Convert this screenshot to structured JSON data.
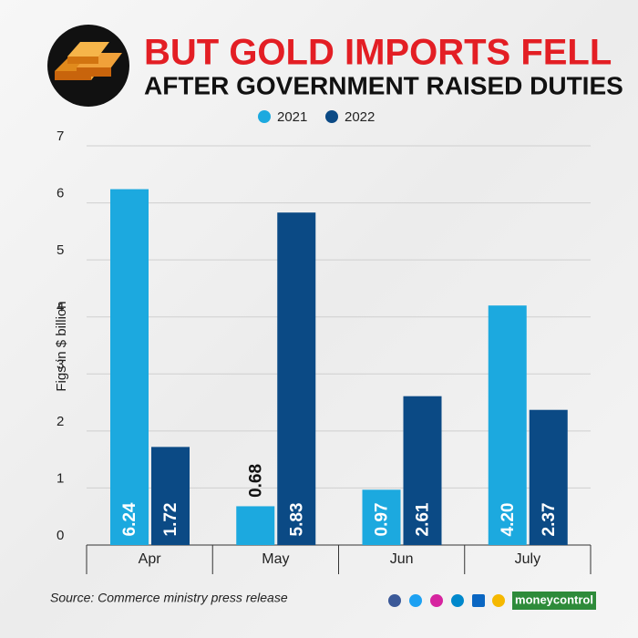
{
  "chart_data": {
    "type": "bar",
    "title": "BUT GOLD IMPORTS FELL",
    "subtitle": "AFTER GOVERNMENT RAISED DUTIES",
    "y_label": "Figs in $ billion",
    "categories": [
      "Apr",
      "May",
      "Jun",
      "July"
    ],
    "series": [
      {
        "name": "2021",
        "color": "#1ca9df",
        "values": [
          6.24,
          0.68,
          0.97,
          4.2
        ],
        "value_labels": [
          "6.24",
          "0.68",
          "0.97",
          "4.20"
        ]
      },
      {
        "name": "2022",
        "color": "#0b4a85",
        "values": [
          1.72,
          5.83,
          2.61,
          2.37
        ]
      }
    ],
    "ylim": [
      0,
      7
    ],
    "yticks": [
      0,
      1,
      2,
      3,
      4,
      5,
      6,
      7
    ],
    "grid": true,
    "source": "Source: Commerce ministry press release",
    "brand": "moneycontrol"
  }
}
